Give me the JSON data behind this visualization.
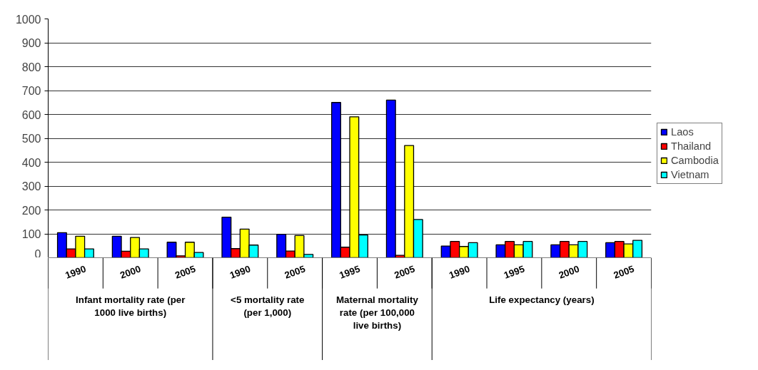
{
  "chart_data": {
    "type": "bar",
    "categories": [
      "1990",
      "2000",
      "2005",
      "1990",
      "2005",
      "1995",
      "2005",
      "1990",
      "1995",
      "2000",
      "2005"
    ],
    "series": [
      {
        "name": "Laos",
        "color": "#0000ff",
        "values": [
          105,
          90,
          65,
          170,
          98,
          650,
          660,
          49,
          54,
          54,
          63
        ]
      },
      {
        "name": "Thailand",
        "color": "#ff0000",
        "values": [
          37,
          27,
          8,
          38,
          28,
          44,
          10,
          68,
          68,
          68,
          68
        ]
      },
      {
        "name": "Cambodia",
        "color": "#ffff00",
        "values": [
          90,
          85,
          65,
          120,
          93,
          590,
          470,
          47,
          54,
          54,
          58
        ]
      },
      {
        "name": "Vietnam",
        "color": "#00ffff",
        "values": [
          37,
          37,
          22,
          53,
          14,
          95,
          160,
          63,
          68,
          68,
          73
        ]
      }
    ],
    "annotations": [
      "Infant mortality rate (per 1000 live births)",
      "<5 mortality rate (per 1,000)",
      "Maternal mortality rate (per 100,000 live births)",
      "Life expectancy (years)"
    ],
    "ylim": [
      0,
      1000
    ],
    "yticks": [
      0,
      100,
      200,
      300,
      400,
      500,
      600,
      700,
      800,
      900,
      1000
    ],
    "grid": "y",
    "legend": "right"
  }
}
